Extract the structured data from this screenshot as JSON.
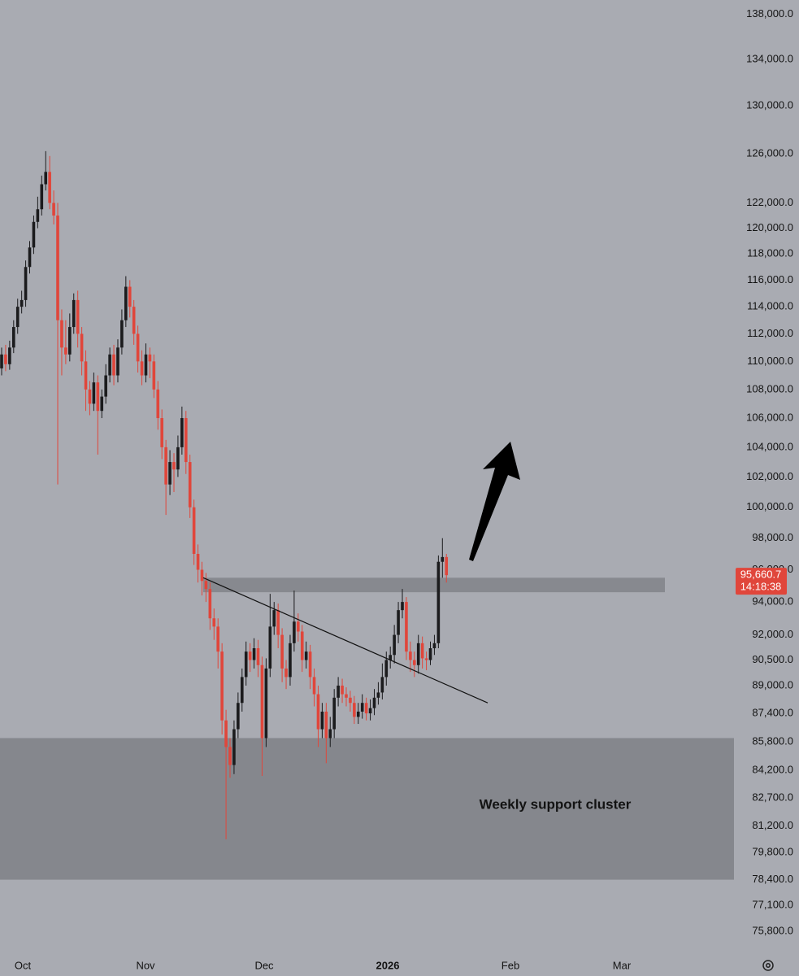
{
  "chart_data": {
    "type": "candlestick",
    "log_y": true,
    "ylim": [
      75000,
      139300
    ],
    "yticks": [
      {
        "value": 138000,
        "label": "138,000.0"
      },
      {
        "value": 134000,
        "label": "134,000.0"
      },
      {
        "value": 130000,
        "label": "130,000.0"
      },
      {
        "value": 126000,
        "label": "126,000.0"
      },
      {
        "value": 122000,
        "label": "122,000.0"
      },
      {
        "value": 120000,
        "label": "120,000.0"
      },
      {
        "value": 118000,
        "label": "118,000.0"
      },
      {
        "value": 116000,
        "label": "116,000.0"
      },
      {
        "value": 114000,
        "label": "114,000.0"
      },
      {
        "value": 112000,
        "label": "112,000.0"
      },
      {
        "value": 110000,
        "label": "110,000.0"
      },
      {
        "value": 108000,
        "label": "108,000.0"
      },
      {
        "value": 106000,
        "label": "106,000.0"
      },
      {
        "value": 104000,
        "label": "104,000.0"
      },
      {
        "value": 102000,
        "label": "102,000.0"
      },
      {
        "value": 100000,
        "label": "100,000.0"
      },
      {
        "value": 98000,
        "label": "98,000.0"
      },
      {
        "value": 96000,
        "label": "96,000.0"
      },
      {
        "value": 94000,
        "label": "94,000.0"
      },
      {
        "value": 92000,
        "label": "92,000.0"
      },
      {
        "value": 90500,
        "label": "90,500.0"
      },
      {
        "value": 89000,
        "label": "89,000.0"
      },
      {
        "value": 87400,
        "label": "87,400.0"
      },
      {
        "value": 85800,
        "label": "85,800.0"
      },
      {
        "value": 84200,
        "label": "84,200.0"
      },
      {
        "value": 82700,
        "label": "82,700.0"
      },
      {
        "value": 81200,
        "label": "81,200.0"
      },
      {
        "value": 79800,
        "label": "79,800.0"
      },
      {
        "value": 78400,
        "label": "78,400.0"
      },
      {
        "value": 77100,
        "label": "77,100.0"
      },
      {
        "value": 75800,
        "label": "75,800.0"
      }
    ],
    "x_axis_labels": [
      "Oct",
      "Nov",
      "Dec",
      "2026",
      "Feb",
      "Mar"
    ],
    "up_color": "#1b1b1d",
    "down_color": "#e0463b",
    "open": [
      109500,
      110500,
      109800,
      111000,
      112500,
      114000,
      114500,
      117000,
      118500,
      120500,
      121500,
      123500,
      124500,
      122000,
      121000,
      113000,
      111000,
      110500,
      112500,
      114500,
      112000,
      110000,
      108000,
      107000,
      108500,
      106500,
      107500,
      109000,
      110500,
      109000,
      111000,
      113000,
      115500,
      114000,
      112000,
      110000,
      109000,
      110500,
      110000,
      108000,
      106000,
      104000,
      101500,
      103000,
      102500,
      104000,
      106000,
      103000,
      100000,
      97000,
      96000,
      95300,
      94800,
      93000,
      92500,
      91000,
      87000,
      85500,
      84500,
      86500,
      88000,
      89500,
      91000,
      90500,
      91200,
      90200,
      86000,
      90000,
      92500,
      93500,
      92000,
      90000,
      89500,
      91500,
      92800,
      92200,
      90500,
      91000,
      89500,
      88500,
      86500,
      87500,
      86000,
      86500,
      88300,
      89000,
      88500,
      88300,
      88000,
      87200,
      87500,
      88000,
      87400,
      87700,
      88300,
      88600,
      89500,
      90500,
      90800,
      92000,
      93500,
      94000,
      91000,
      90500,
      90200,
      91500,
      90600,
      90500,
      91200,
      91500,
      96500,
      96800
    ],
    "high": [
      111000,
      111200,
      111500,
      113000,
      114600,
      115200,
      117500,
      119000,
      121000,
      122500,
      124200,
      126200,
      125800,
      123000,
      122000,
      113800,
      113000,
      113500,
      115000,
      115200,
      112500,
      110800,
      108600,
      109200,
      109000,
      108000,
      109800,
      111000,
      111200,
      111600,
      113800,
      116300,
      116000,
      114500,
      112600,
      110800,
      111300,
      111000,
      110500,
      108600,
      106600,
      104500,
      103800,
      103600,
      104800,
      106800,
      106500,
      103500,
      100500,
      97600,
      96500,
      95800,
      95200,
      93600,
      93000,
      91500,
      87600,
      86000,
      87000,
      88600,
      90000,
      91600,
      91500,
      91800,
      91700,
      90700,
      90600,
      94500,
      94000,
      93900,
      92400,
      90500,
      92000,
      94700,
      93300,
      92600,
      91600,
      91400,
      90000,
      89000,
      88000,
      88000,
      87200,
      88800,
      89500,
      89400,
      88900,
      88700,
      88400,
      88000,
      88500,
      88300,
      88200,
      88800,
      89200,
      90300,
      91000,
      91300,
      92600,
      94000,
      94800,
      94300,
      91600,
      91000,
      92000,
      91900,
      91000,
      91600,
      92000,
      96900,
      98000,
      97000
    ],
    "low": [
      109000,
      109300,
      109400,
      110600,
      112000,
      113500,
      114000,
      116500,
      118000,
      120000,
      121000,
      123000,
      121500,
      120300,
      101500,
      109000,
      109800,
      110000,
      112000,
      111000,
      109000,
      106500,
      106200,
      106500,
      103500,
      106000,
      107000,
      108500,
      108300,
      108500,
      110500,
      112500,
      113200,
      111200,
      109200,
      108300,
      108500,
      108800,
      107400,
      105200,
      103200,
      99500,
      100800,
      101000,
      102000,
      103500,
      102200,
      99300,
      96300,
      95200,
      94400,
      94000,
      92300,
      91700,
      90000,
      86200,
      80500,
      83800,
      84000,
      86000,
      87500,
      89000,
      89800,
      90000,
      89500,
      83900,
      85500,
      89500,
      92000,
      91200,
      89200,
      88800,
      89000,
      91000,
      91600,
      89800,
      90000,
      88800,
      87800,
      85500,
      86000,
      84600,
      85500,
      86000,
      87800,
      88000,
      87800,
      87500,
      86800,
      86800,
      87100,
      87000,
      87000,
      87300,
      87900,
      88200,
      89000,
      90000,
      90300,
      91500,
      93000,
      90500,
      89800,
      89500,
      89700,
      90000,
      89900,
      90200,
      90800,
      91200,
      95500,
      95200
    ],
    "close": [
      110500,
      109800,
      111000,
      112500,
      114000,
      114500,
      117000,
      118500,
      120500,
      121500,
      123500,
      124500,
      122000,
      121000,
      113000,
      111000,
      110500,
      112500,
      114500,
      112000,
      110000,
      108000,
      107000,
      108500,
      106500,
      107500,
      109000,
      110500,
      109000,
      111000,
      113000,
      115500,
      114000,
      112000,
      110000,
      109000,
      110500,
      110000,
      108000,
      106000,
      104000,
      101500,
      103000,
      102500,
      104000,
      106000,
      103000,
      100000,
      97000,
      96000,
      95300,
      94800,
      93000,
      92500,
      91000,
      87000,
      85500,
      84500,
      86500,
      88000,
      89500,
      91000,
      90500,
      91200,
      90200,
      86000,
      90000,
      92500,
      93500,
      92000,
      90000,
      89500,
      91500,
      92800,
      92200,
      90500,
      91000,
      89500,
      88500,
      86500,
      87500,
      86000,
      86500,
      88300,
      89000,
      88500,
      88300,
      88000,
      87200,
      87500,
      88000,
      87400,
      87700,
      88300,
      88600,
      89500,
      90500,
      90800,
      92000,
      93500,
      94000,
      91000,
      90500,
      90200,
      91500,
      90600,
      90500,
      91200,
      91500,
      96500,
      96800,
      95660.7
    ],
    "zones": [
      {
        "low": 94600,
        "high": 95500,
        "color": "#87898f"
      },
      {
        "low": 78400,
        "high": 86000,
        "color": "#85878d"
      }
    ],
    "trendline": {
      "start": 95500,
      "end": 88000
    },
    "annotation": "Weekly support cluster",
    "last_price": {
      "value": 95660.7,
      "label": "95,660.7"
    },
    "countdown": "14:18:38",
    "price_label_color": "#e0463b"
  }
}
